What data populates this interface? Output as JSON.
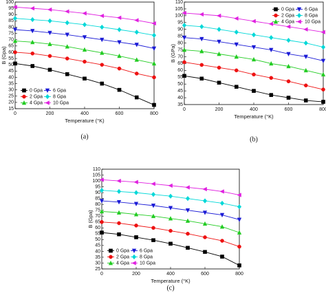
{
  "chart_data": [
    {
      "type": "line",
      "caption": "(a)",
      "xlabel": "Temperature (°K)",
      "ylabel": "B (Gpa)",
      "x": [
        0,
        100,
        200,
        300,
        400,
        500,
        600,
        700,
        800
      ],
      "xlim": [
        0,
        800
      ],
      "xticks": [
        0,
        200,
        400,
        600,
        800
      ],
      "ylim": [
        15,
        100
      ],
      "yticks": [
        15,
        20,
        25,
        30,
        35,
        40,
        45,
        50,
        55,
        60,
        65,
        70,
        75,
        80,
        85,
        90,
        95,
        100
      ],
      "legend": "lower left",
      "series": [
        {
          "name": "0 Gpa",
          "color": "#000000",
          "marker": "square",
          "values": [
            51,
            49,
            46,
            42.5,
            39,
            35,
            30,
            24,
            18
          ]
        },
        {
          "name": "2 Gpa",
          "color": "#ee1111",
          "marker": "circle",
          "values": [
            60,
            59,
            57,
            55,
            52.5,
            50,
            47,
            43,
            40
          ]
        },
        {
          "name": "4 Gpa",
          "color": "#22cc22",
          "marker": "triangle-up",
          "values": [
            69,
            68,
            66.5,
            64.5,
            62,
            59.5,
            57,
            54,
            51
          ]
        },
        {
          "name": "6 Gpa",
          "color": "#1a1ad6",
          "marker": "triangle-down",
          "values": [
            78,
            77,
            75.5,
            74,
            72,
            70,
            68,
            66,
            63
          ]
        },
        {
          "name": "8 Gpa",
          "color": "#00d8d8",
          "marker": "diamond",
          "values": [
            87,
            86,
            85,
            83.5,
            82,
            80,
            78,
            76,
            73.5
          ]
        },
        {
          "name": "10 Gpa",
          "color": "#e020e0",
          "marker": "triangle-left",
          "values": [
            96,
            95,
            94,
            92.5,
            91,
            89,
            87.5,
            85.5,
            83
          ]
        }
      ]
    },
    {
      "type": "line",
      "caption": "(b)",
      "xlabel": "Temperature (°K)",
      "ylabel": "B (GPa)",
      "x": [
        0,
        100,
        200,
        300,
        400,
        500,
        600,
        700,
        800
      ],
      "xlim": [
        0,
        800
      ],
      "xticks": [
        0,
        200,
        400,
        600,
        800
      ],
      "ylim": [
        35,
        110
      ],
      "yticks": [
        35,
        40,
        45,
        50,
        55,
        60,
        65,
        70,
        75,
        80,
        85,
        90,
        95,
        100,
        105,
        110
      ],
      "legend": "upper right",
      "series": [
        {
          "name": "0 Gpa",
          "color": "#000000",
          "marker": "square",
          "values": [
            56,
            54,
            51,
            48,
            45,
            42,
            40,
            38,
            37
          ]
        },
        {
          "name": "2 Gpa",
          "color": "#ee1111",
          "marker": "circle",
          "values": [
            66,
            64,
            62,
            60,
            57,
            54.5,
            52,
            49,
            46
          ]
        },
        {
          "name": "4 Gpa",
          "color": "#22cc22",
          "marker": "triangle-up",
          "values": [
            75,
            74,
            72,
            70,
            68,
            65,
            63,
            60,
            57
          ]
        },
        {
          "name": "6 Gpa",
          "color": "#1a1ad6",
          "marker": "triangle-down",
          "values": [
            84,
            83,
            81,
            79,
            77,
            75,
            72,
            70,
            67
          ]
        },
        {
          "name": "8 Gpa",
          "color": "#00d8d8",
          "marker": "diamond",
          "values": [
            93,
            92,
            90,
            88,
            86,
            84,
            82,
            80,
            77
          ]
        },
        {
          "name": "10 Gpa",
          "color": "#e020e0",
          "marker": "triangle-left",
          "values": [
            102,
            101,
            100,
            98,
            96,
            94,
            92,
            90,
            88
          ]
        }
      ]
    },
    {
      "type": "line",
      "caption": "(c)",
      "xlabel": "Temperature (°K)",
      "ylabel": "B (Gpa)",
      "x": [
        0,
        100,
        200,
        300,
        400,
        500,
        600,
        700,
        800
      ],
      "xlim": [
        0,
        800
      ],
      "xticks": [
        0,
        200,
        400,
        600,
        800
      ],
      "ylim": [
        25,
        110
      ],
      "yticks": [
        25,
        30,
        35,
        40,
        45,
        50,
        55,
        60,
        65,
        70,
        75,
        80,
        85,
        90,
        95,
        100,
        105,
        110
      ],
      "legend": "lower left",
      "series": [
        {
          "name": "0 Gpa",
          "color": "#000000",
          "marker": "square",
          "values": [
            56,
            54.5,
            52,
            49.5,
            46.5,
            43,
            39.5,
            35.5,
            28
          ]
        },
        {
          "name": "2 Gpa",
          "color": "#ee1111",
          "marker": "circle",
          "values": [
            65,
            64,
            62,
            60,
            57.5,
            55,
            52,
            49,
            44
          ]
        },
        {
          "name": "4 Gpa",
          "color": "#22cc22",
          "marker": "triangle-up",
          "values": [
            74,
            73,
            71.5,
            70,
            68,
            66,
            63.5,
            61,
            56
          ]
        },
        {
          "name": "6 Gpa",
          "color": "#1a1ad6",
          "marker": "triangle-down",
          "values": [
            83,
            82,
            80.5,
            79,
            77,
            75,
            73,
            71,
            67
          ]
        },
        {
          "name": "8 Gpa",
          "color": "#00d8d8",
          "marker": "diamond",
          "values": [
            92,
            91,
            90,
            88.5,
            87,
            85,
            83,
            81,
            78
          ]
        },
        {
          "name": "10 Gpa",
          "color": "#e020e0",
          "marker": "triangle-left",
          "values": [
            101,
            100,
            99,
            97.5,
            96,
            94.5,
            93,
            91,
            88
          ]
        }
      ]
    }
  ]
}
